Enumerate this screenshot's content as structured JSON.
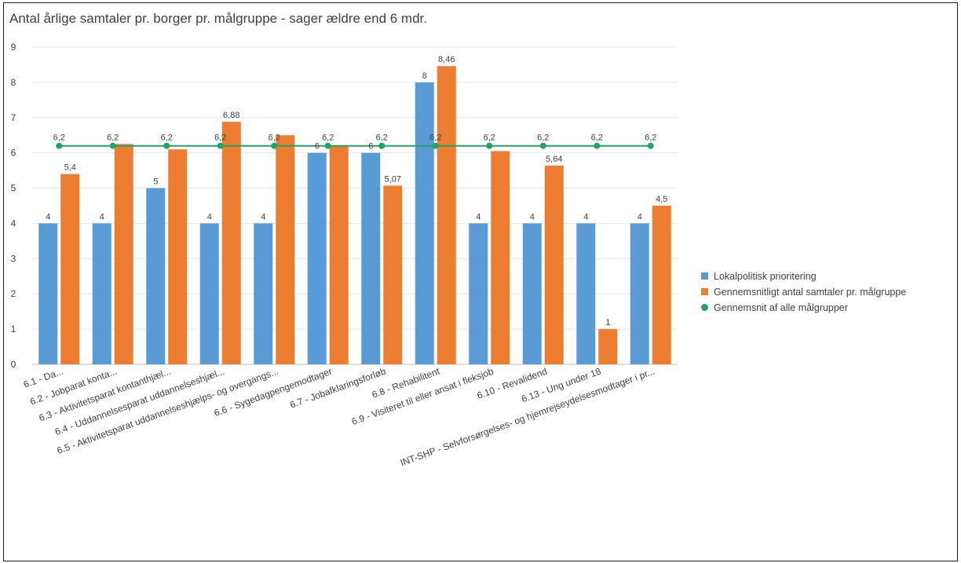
{
  "colors": {
    "series_1": "#5b9bd5",
    "series_2": "#ed7d31",
    "series_3": "#21a366",
    "grid": "#e8e8e8"
  },
  "chart_data": {
    "type": "bar",
    "title": "Antal årlige samtaler pr. borger pr. målgruppe - sager ældre end 6 mdr.",
    "xlabel": "",
    "ylabel": "",
    "ylim": [
      0,
      9
    ],
    "yticks": [
      "0",
      "1",
      "2",
      "3",
      "4",
      "5",
      "6",
      "7",
      "8",
      "9"
    ],
    "grid": true,
    "legend_position": "right",
    "categories": [
      "6.1 - Da...",
      "6.2 - Jobparat konta...",
      "6.3 - Aktivitetsparat kontanthjæl...",
      "6.4 - Uddannelsesparat uddannelseshjæl...",
      "6.5 - Aktivitetsparat uddannelseshjælps- og overgangs...",
      "6.6 - Sygedagpengemodtager",
      "6.7 - Jobafklaringsforløb",
      "6.8 - Rehabilitent",
      "6.9 - Visiteret til eller ansat i fleksjob",
      "6.10 - Revalidend",
      "6.13 - Ung under 18",
      "INT-SHP - Selvforsørgelses- og hjemrejseydelsesmodtager i pr..."
    ],
    "series": [
      {
        "name": "Lokalpolitisk prioritering",
        "kind": "bar",
        "values": [
          4,
          4,
          5,
          4,
          4,
          6,
          6,
          8,
          4,
          4,
          4,
          4
        ],
        "labels": [
          "4",
          "4",
          "5",
          "4",
          "4",
          "6",
          "6",
          "8",
          "4",
          "4",
          "4",
          "4"
        ]
      },
      {
        "name": "Gennemsnitligt antal samtaler pr. målgruppe",
        "kind": "bar",
        "values": [
          5.4,
          6.25,
          6.1,
          6.88,
          6.5,
          6.2,
          5.07,
          8.46,
          6.05,
          5.64,
          1,
          4.5
        ],
        "labels": [
          "5,4",
          null,
          null,
          "6,88",
          null,
          null,
          "5,07",
          "8,46",
          null,
          "5,64",
          "1",
          "4,5"
        ]
      },
      {
        "name": "Gennemsnit af alle målgrupper",
        "kind": "line",
        "values": [
          6.2,
          6.2,
          6.2,
          6.2,
          6.2,
          6.2,
          6.2,
          6.2,
          6.2,
          6.2,
          6.2,
          6.2
        ],
        "labels": [
          "6,2",
          "6,2",
          "6,2",
          "6,2",
          "6,2",
          "6,2",
          "6,2",
          "6,2",
          "6,2",
          "6,2",
          "6,2",
          "6,2"
        ]
      }
    ]
  }
}
